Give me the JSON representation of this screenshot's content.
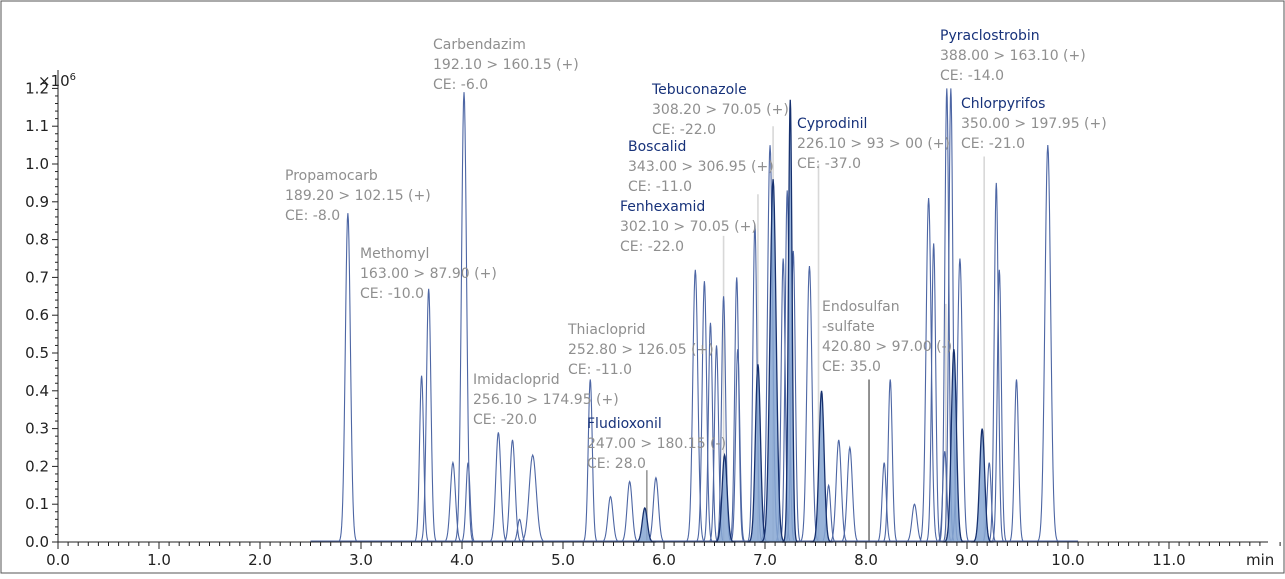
{
  "chart_data": {
    "type": "line",
    "title": "",
    "xlabel": "min",
    "ylabel": "",
    "y_multiplier": "×10",
    "y_multiplier_exp": "6",
    "xlim": [
      0,
      12.2
    ],
    "ylim": [
      0,
      1.25
    ],
    "x_ticks": [
      0.0,
      1.0,
      2.0,
      3.0,
      4.0,
      5.0,
      6.0,
      7.0,
      8.0,
      9.0,
      10.0,
      11.0
    ],
    "x_tick_labels": [
      "0.0",
      "1.0",
      "2.0",
      "3.0",
      "4.0",
      "5.0",
      "6.0",
      "7.0",
      "8.0",
      "9.0",
      "10.0",
      "11.0"
    ],
    "y_ticks": [
      0,
      0.1,
      0.2,
      0.3,
      0.4,
      0.5,
      0.6,
      0.7,
      0.8,
      0.9,
      1.0,
      1.1,
      1.2
    ],
    "y_tick_labels": [
      "0.0",
      "0.1",
      "0.2",
      "0.3",
      "0.4",
      "0.5",
      "0.6",
      "0.7",
      "0.8",
      "0.9",
      "1.0",
      "1.1",
      "1.2"
    ],
    "grid": false,
    "colors": {
      "outline_peak": "#4d66a4",
      "filled_peak": "#86a6d2",
      "filled_edge": "#16306e",
      "label_blue": "#17327a",
      "label_gray": "#8f8f8f",
      "marker_line": "#d8d8d8"
    },
    "peaks": [
      {
        "rt": 2.87,
        "height": 0.87,
        "width": 0.025
      },
      {
        "rt": 3.6,
        "height": 0.44,
        "width": 0.02
      },
      {
        "rt": 3.67,
        "height": 0.67,
        "width": 0.022
      },
      {
        "rt": 3.91,
        "height": 0.21,
        "width": 0.025
      },
      {
        "rt": 4.02,
        "height": 1.19,
        "width": 0.025
      },
      {
        "rt": 4.06,
        "height": 0.21,
        "width": 0.02
      },
      {
        "rt": 4.36,
        "height": 0.29,
        "width": 0.025
      },
      {
        "rt": 4.5,
        "height": 0.27,
        "width": 0.025
      },
      {
        "rt": 4.57,
        "height": 0.06,
        "width": 0.02
      },
      {
        "rt": 4.7,
        "height": 0.23,
        "width": 0.035
      },
      {
        "rt": 5.27,
        "height": 0.43,
        "width": 0.02
      },
      {
        "rt": 5.47,
        "height": 0.12,
        "width": 0.025
      },
      {
        "rt": 5.66,
        "height": 0.16,
        "width": 0.025
      },
      {
        "rt": 5.92,
        "height": 0.17,
        "width": 0.025
      },
      {
        "rt": 6.31,
        "height": 0.72,
        "width": 0.025
      },
      {
        "rt": 6.4,
        "height": 0.69,
        "width": 0.022
      },
      {
        "rt": 6.46,
        "height": 0.58,
        "width": 0.02
      },
      {
        "rt": 6.52,
        "height": 0.52,
        "width": 0.02
      },
      {
        "rt": 6.59,
        "height": 0.65,
        "width": 0.02
      },
      {
        "rt": 6.72,
        "height": 0.7,
        "width": 0.02
      },
      {
        "rt": 6.73,
        "height": 0.51,
        "width": 0.02
      },
      {
        "rt": 6.9,
        "height": 0.84,
        "width": 0.02
      },
      {
        "rt": 7.05,
        "height": 1.05,
        "width": 0.025
      },
      {
        "rt": 7.18,
        "height": 0.75,
        "width": 0.02
      },
      {
        "rt": 7.22,
        "height": 0.93,
        "width": 0.02
      },
      {
        "rt": 7.28,
        "height": 0.77,
        "width": 0.02
      },
      {
        "rt": 7.44,
        "height": 0.73,
        "width": 0.025
      },
      {
        "rt": 7.63,
        "height": 0.15,
        "width": 0.02
      },
      {
        "rt": 7.73,
        "height": 0.27,
        "width": 0.025
      },
      {
        "rt": 7.84,
        "height": 0.25,
        "width": 0.025
      },
      {
        "rt": 8.18,
        "height": 0.21,
        "width": 0.02
      },
      {
        "rt": 8.24,
        "height": 0.43,
        "width": 0.02
      },
      {
        "rt": 8.48,
        "height": 0.1,
        "width": 0.025
      },
      {
        "rt": 8.62,
        "height": 0.91,
        "width": 0.025
      },
      {
        "rt": 8.67,
        "height": 0.79,
        "width": 0.02
      },
      {
        "rt": 8.78,
        "height": 0.24,
        "width": 0.02
      },
      {
        "rt": 8.8,
        "height": 1.2,
        "width": 0.02
      },
      {
        "rt": 8.84,
        "height": 1.2,
        "width": 0.02
      },
      {
        "rt": 8.93,
        "height": 0.75,
        "width": 0.025
      },
      {
        "rt": 9.22,
        "height": 0.21,
        "width": 0.02
      },
      {
        "rt": 9.29,
        "height": 0.95,
        "width": 0.02
      },
      {
        "rt": 9.32,
        "height": 0.72,
        "width": 0.02
      },
      {
        "rt": 9.49,
        "height": 0.43,
        "width": 0.02
      },
      {
        "rt": 9.8,
        "height": 1.05,
        "width": 0.028
      }
    ],
    "filled_peaks": [
      {
        "rt": 5.81,
        "height": 0.09,
        "width": 0.025
      },
      {
        "rt": 6.6,
        "height": 0.23,
        "width": 0.025
      },
      {
        "rt": 6.93,
        "height": 0.47,
        "width": 0.025
      },
      {
        "rt": 7.08,
        "height": 0.96,
        "width": 0.03
      },
      {
        "rt": 7.25,
        "height": 1.17,
        "width": 0.018
      },
      {
        "rt": 7.56,
        "height": 0.4,
        "width": 0.025
      },
      {
        "rt": 8.87,
        "height": 0.51,
        "width": 0.025
      },
      {
        "rt": 9.15,
        "height": 0.3,
        "width": 0.025
      }
    ],
    "markers": [
      {
        "rt": 5.83,
        "top": 0.19,
        "color": "#999999"
      },
      {
        "rt": 6.59,
        "top": 0.81,
        "color": "#d8d8d8"
      },
      {
        "rt": 6.93,
        "top": 0.92,
        "color": "#d8d8d8"
      },
      {
        "rt": 7.08,
        "top": 1.1,
        "color": "#d8d8d8"
      },
      {
        "rt": 7.53,
        "top": 1.0,
        "color": "#d8d8d8"
      },
      {
        "rt": 8.03,
        "top": 0.43,
        "color": "#777777"
      },
      {
        "rt": 8.79,
        "top": 0.63,
        "color": "#d8d8d8"
      },
      {
        "rt": 9.17,
        "top": 1.02,
        "color": "#d8d8d8"
      }
    ],
    "annotations": [
      {
        "name": "Propamocarb",
        "transition": "189.20 > 102.15 (+)",
        "ce": "CE: -8.0",
        "style": "gray"
      },
      {
        "name": "Carbendazim",
        "transition": "192.10 > 160.15 (+)",
        "ce": "CE: -6.0",
        "style": "gray"
      },
      {
        "name": "Methomyl",
        "transition": "163.00 > 87.90 (+)",
        "ce": "CE: -10.0",
        "style": "gray"
      },
      {
        "name": "Imidacloprid",
        "transition": "256.10 > 174.95 (+)",
        "ce": "CE: -20.0",
        "style": "gray"
      },
      {
        "name": "Thiacloprid",
        "transition": "252.80 > 126.05 (+)",
        "ce": "CE: -11.0",
        "style": "gray"
      },
      {
        "name": "Fludioxonil",
        "transition": "247.00 > 180.15 (-)",
        "ce": "CE: 28.0",
        "style": "blue"
      },
      {
        "name": "Fenhexamid",
        "transition": "302.10 > 70.05 (+)",
        "ce": "CE: -22.0",
        "style": "blue"
      },
      {
        "name": "Boscalid",
        "transition": "343.00 > 306.95 (+)",
        "ce": "CE: -11.0",
        "style": "blue"
      },
      {
        "name": "Tebuconazole",
        "transition": "308.20 > 70.05 (+)",
        "ce": "CE: -22.0",
        "style": "blue"
      },
      {
        "name": "Cyprodinil",
        "transition": "226.10 > 93 > 00 (+)",
        "ce": "CE: -37.0",
        "style": "blue"
      },
      {
        "name": "Endosulfan -sulfate",
        "name_lines": [
          "Endosulfan",
          "-sulfate"
        ],
        "transition": "420.80 > 97.00 (-)",
        "ce": "CE: 35.0",
        "style": "gray"
      },
      {
        "name": "Pyraclostrobin",
        "transition": "388.00 > 163.10 (+)",
        "ce": "CE: -14.0",
        "style": "blue"
      },
      {
        "name": "Chlorpyrifos",
        "transition": "350.00 > 197.95 (+)",
        "ce": "CE: -21.0",
        "style": "blue"
      }
    ]
  }
}
